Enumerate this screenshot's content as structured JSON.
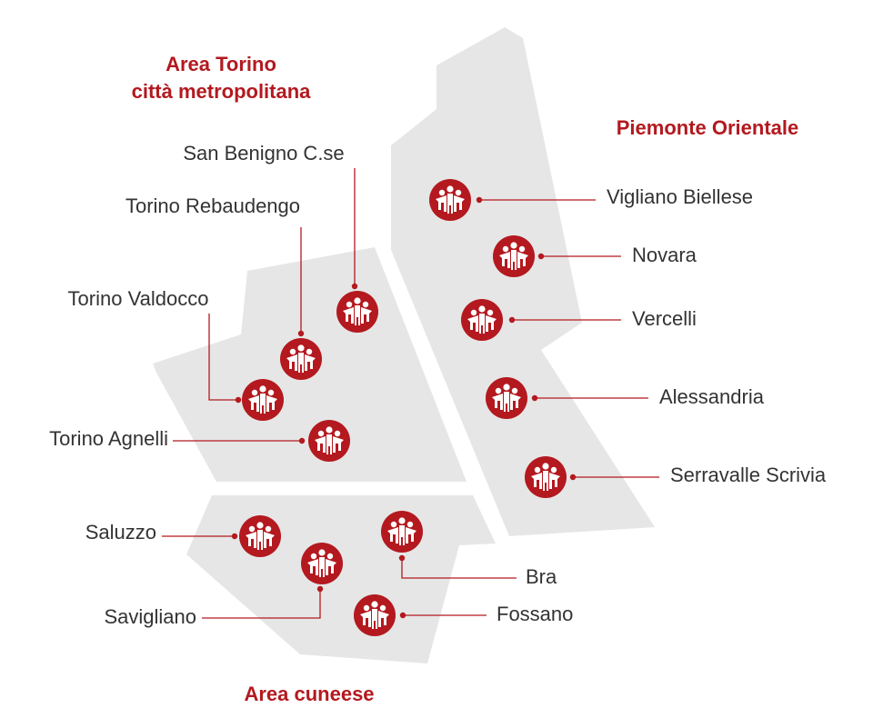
{
  "regions": [
    {
      "title": [
        "Area Torino",
        "città metropolitana"
      ],
      "locations": [
        "San Benigno C.se",
        "Torino Rebaudengo",
        "Torino Valdocco",
        "Torino Agnelli"
      ]
    },
    {
      "title": [
        "Piemonte Orientale"
      ],
      "locations": [
        "Vigliano Biellese",
        "Novara",
        "Vercelli",
        "Alessandria",
        "Serravalle Scrivia"
      ]
    },
    {
      "title": [
        "Area cuneese"
      ],
      "locations": [
        "Saluzzo",
        "Bra",
        "Savigliano",
        "Fossano"
      ]
    }
  ]
}
